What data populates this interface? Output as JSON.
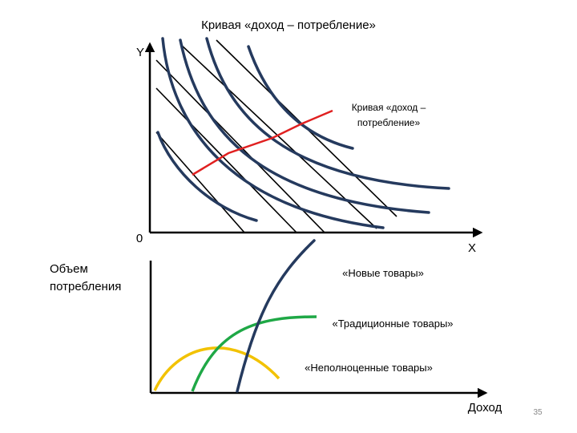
{
  "title": "Кривая «доход – потребление»",
  "top_diagram": {
    "y_axis_label": "Y",
    "origin_label": "0",
    "x_axis_label": "X",
    "curve_label": [
      "Кривая «доход –",
      "потребление»"
    ]
  },
  "bottom_diagram": {
    "y_axis_label": [
      "Объем",
      "потребления"
    ],
    "x_axis_label": "Доход",
    "curves": [
      {
        "label": "«Новые товары»"
      },
      {
        "label": "«Традиционные товары»"
      },
      {
        "label": "«Неполноценные товары»"
      }
    ]
  },
  "page_number": "35"
}
